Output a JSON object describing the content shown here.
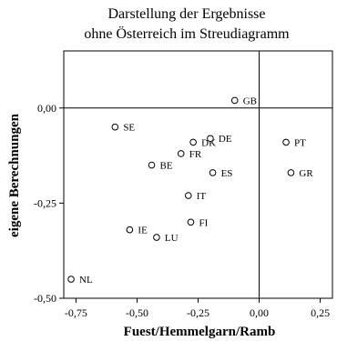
{
  "chart_data": {
    "type": "scatter",
    "title_lines": [
      "Darstellung der Ergebnisse",
      "ohne Österreich im Streudiagramm"
    ],
    "xlabel": "Fuest/Hemmelgarn/Ramb",
    "ylabel": "eigene Berechnungen",
    "xlim": [
      -0.8,
      0.3
    ],
    "ylim": [
      -0.5,
      0.15
    ],
    "x_ticks": [
      -0.75,
      -0.5,
      -0.25,
      0.0,
      0.25
    ],
    "x_tick_labels": [
      "-0,75",
      "-0,50",
      "-0,25",
      "0,00",
      "0,25"
    ],
    "y_ticks": [
      0.0,
      -0.25,
      -0.5
    ],
    "y_tick_labels": [
      "0,00",
      "-0,25",
      "-0,50"
    ],
    "reference_lines": {
      "x": 0.0,
      "y": 0.0
    },
    "grid": false,
    "legend": "none",
    "points": [
      {
        "label": "GB",
        "x": -0.1,
        "y": 0.02
      },
      {
        "label": "SE",
        "x": -0.59,
        "y": -0.05
      },
      {
        "label": "DK",
        "x": -0.27,
        "y": -0.09
      },
      {
        "label": "DE",
        "x": -0.2,
        "y": -0.08
      },
      {
        "label": "PT",
        "x": 0.11,
        "y": -0.09
      },
      {
        "label": "FR",
        "x": -0.32,
        "y": -0.12
      },
      {
        "label": "BE",
        "x": -0.44,
        "y": -0.15
      },
      {
        "label": "ES",
        "x": -0.19,
        "y": -0.17
      },
      {
        "label": "GR",
        "x": 0.13,
        "y": -0.17
      },
      {
        "label": "IT",
        "x": -0.29,
        "y": -0.23
      },
      {
        "label": "FI",
        "x": -0.28,
        "y": -0.3
      },
      {
        "label": "IE",
        "x": -0.53,
        "y": -0.32
      },
      {
        "label": "LU",
        "x": -0.42,
        "y": -0.34
      },
      {
        "label": "NL",
        "x": -0.77,
        "y": -0.45
      }
    ]
  }
}
